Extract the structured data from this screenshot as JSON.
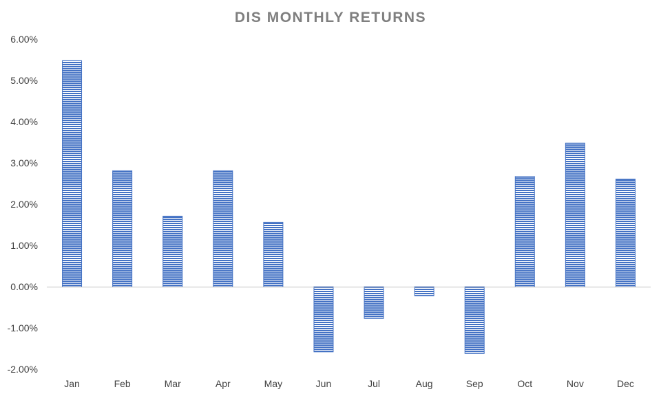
{
  "colors": {
    "bar_fill": "#4472c4",
    "bar_stripe": "#ffffff",
    "axis_line": "#bfbfbf",
    "title_text": "#7f7f7f",
    "tick_text": "#404040"
  },
  "chart_data": {
    "type": "bar",
    "title": "DIS MONTHLY RETURNS",
    "xlabel": "",
    "ylabel": "",
    "categories": [
      "Jan",
      "Feb",
      "Mar",
      "Apr",
      "May",
      "Jun",
      "Jul",
      "Aug",
      "Sep",
      "Oct",
      "Nov",
      "Dec"
    ],
    "values": [
      5.48,
      2.81,
      1.71,
      2.81,
      1.56,
      -1.58,
      -0.77,
      -0.22,
      -1.62,
      2.67,
      3.48,
      2.61
    ],
    "ylim": [
      -2,
      6
    ],
    "yticks": [
      -2,
      -1,
      0,
      1,
      2,
      3,
      4,
      5,
      6
    ],
    "ytick_labels": [
      "-2.00%",
      "-1.00%",
      "0.00%",
      "1.00%",
      "2.00%",
      "3.00%",
      "4.00%",
      "5.00%",
      "6.00%"
    ],
    "value_format": "percent",
    "bar_pattern": "horizontal-stripes",
    "grid": false,
    "legend": false
  }
}
